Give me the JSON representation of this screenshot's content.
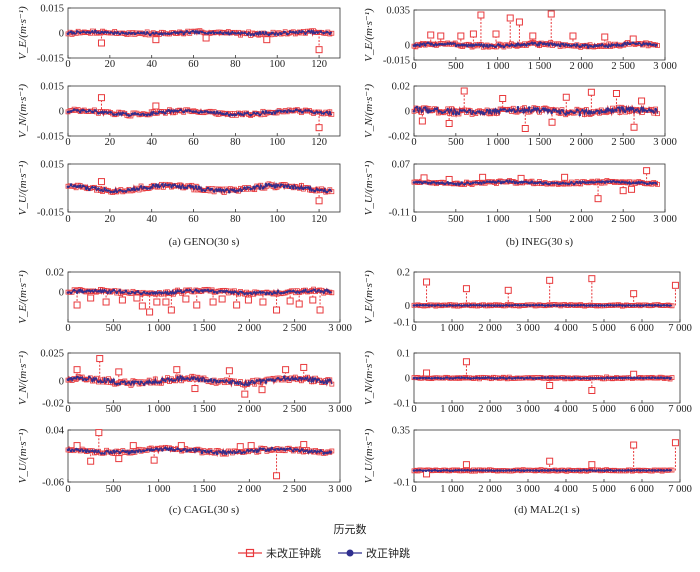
{
  "figure": {
    "xlabel": "历元数",
    "legend": [
      {
        "name": "未改正钟跳",
        "color": "#e8393c",
        "marker": "square"
      },
      {
        "name": "改正钟跳",
        "color": "#2f2f8f",
        "marker": "circle"
      }
    ],
    "colors": {
      "uncorrected": "#e8393c",
      "corrected": "#2f2f8f"
    }
  },
  "chart_data": [
    {
      "type": "line",
      "title": "(a) GENO(30 s)",
      "xlim": [
        0,
        130
      ],
      "xticks": [
        "0",
        "20",
        "40",
        "60",
        "80",
        "100",
        "120"
      ],
      "rows": [
        {
          "ylabel": "V_E/(m·s⁻¹)",
          "ylim": [
            -0.015,
            0.015
          ],
          "yticks": [
            "0.015",
            "0",
            "-0.015"
          ],
          "baseline": 0,
          "noise": 0.0008,
          "wave": 0.0004,
          "spikes": [
            {
              "x": 16,
              "y": -0.006
            },
            {
              "x": 42,
              "y": -0.004
            },
            {
              "x": 66,
              "y": -0.003
            },
            {
              "x": 95,
              "y": -0.004
            },
            {
              "x": 120,
              "y": -0.01
            }
          ]
        },
        {
          "ylabel": "V_N/(m·s⁻¹)",
          "ylim": [
            -0.015,
            0.015
          ],
          "yticks": [
            "0.015",
            "0",
            "-0.015"
          ],
          "baseline": -0.001,
          "noise": 0.0009,
          "wave": 0.001,
          "spikes": [
            {
              "x": 16,
              "y": 0.008
            },
            {
              "x": 42,
              "y": 0.003
            },
            {
              "x": 120,
              "y": -0.01
            }
          ]
        },
        {
          "ylabel": "V_U/(m·s⁻¹)",
          "ylim": [
            -0.015,
            0.015
          ],
          "yticks": [
            "0.015",
            "-0.015"
          ],
          "baseline": 0,
          "noise": 0.0012,
          "wave": 0.0015,
          "spikes": [
            {
              "x": 16,
              "y": 0.004
            },
            {
              "x": 120,
              "y": -0.008
            }
          ]
        }
      ]
    },
    {
      "type": "line",
      "title": "(b) INEG(30 s)",
      "xlim": [
        0,
        3000
      ],
      "xticks": [
        "0",
        "500",
        "1 000",
        "1 500",
        "2 000",
        "2 500",
        "3 000"
      ],
      "rows": [
        {
          "ylabel": "V_E/(m·s⁻¹)",
          "ylim": [
            -0.015,
            0.035
          ],
          "yticks": [
            "0.035",
            "0",
            "-0.015"
          ],
          "baseline": 0,
          "noise": 0.0015,
          "wave": 0.001,
          "spikes": [
            {
              "x": 200,
              "y": 0.01
            },
            {
              "x": 320,
              "y": 0.009
            },
            {
              "x": 560,
              "y": 0.009
            },
            {
              "x": 710,
              "y": 0.011
            },
            {
              "x": 800,
              "y": 0.03
            },
            {
              "x": 980,
              "y": 0.011
            },
            {
              "x": 1150,
              "y": 0.027
            },
            {
              "x": 1260,
              "y": 0.023
            },
            {
              "x": 1420,
              "y": 0.009
            },
            {
              "x": 1640,
              "y": 0.031
            },
            {
              "x": 1900,
              "y": 0.009
            },
            {
              "x": 2280,
              "y": 0.008
            },
            {
              "x": 2620,
              "y": 0.006
            }
          ]
        },
        {
          "ylabel": "V_N/(m·s⁻¹)",
          "ylim": [
            -0.02,
            0.02
          ],
          "yticks": [
            "0.02",
            "0",
            "-0.02"
          ],
          "baseline": 0,
          "noise": 0.0022,
          "wave": 0.001,
          "spikes": [
            {
              "x": 100,
              "y": -0.008
            },
            {
              "x": 420,
              "y": -0.01
            },
            {
              "x": 600,
              "y": 0.016
            },
            {
              "x": 1060,
              "y": 0.01
            },
            {
              "x": 1330,
              "y": -0.014
            },
            {
              "x": 1650,
              "y": -0.009
            },
            {
              "x": 1820,
              "y": 0.011
            },
            {
              "x": 2120,
              "y": 0.015
            },
            {
              "x": 2420,
              "y": 0.014
            },
            {
              "x": 2630,
              "y": -0.013
            },
            {
              "x": 2720,
              "y": 0.008
            }
          ]
        },
        {
          "ylabel": "V_U/(m·s⁻¹)",
          "ylim": [
            -0.11,
            0.07
          ],
          "yticks": [
            "0.07",
            "-0.11"
          ],
          "baseline": 0,
          "noise": 0.004,
          "wave": 0.003,
          "spikes": [
            {
              "x": 120,
              "y": 0.018
            },
            {
              "x": 420,
              "y": 0.012
            },
            {
              "x": 820,
              "y": 0.02
            },
            {
              "x": 1280,
              "y": 0.016
            },
            {
              "x": 1800,
              "y": 0.02
            },
            {
              "x": 2200,
              "y": -0.06
            },
            {
              "x": 2500,
              "y": -0.03
            },
            {
              "x": 2600,
              "y": -0.025
            },
            {
              "x": 2780,
              "y": 0.045
            }
          ]
        }
      ]
    },
    {
      "type": "line",
      "title": "(c) CAGL(30 s)",
      "xlim": [
        0,
        3000
      ],
      "xticks": [
        "0",
        "500",
        "1 000",
        "1 500",
        "2 000",
        "2 500",
        "3 000"
      ],
      "rows": [
        {
          "ylabel": "V_E/(m·s⁻¹)",
          "ylim": [
            -0.03,
            0.02
          ],
          "yticks": [
            "0.02",
            "0"
          ],
          "baseline": 0,
          "noise": 0.0015,
          "wave": 0.001,
          "spikes": [
            {
              "x": 100,
              "y": -0.013
            },
            {
              "x": 250,
              "y": -0.006
            },
            {
              "x": 420,
              "y": -0.01
            },
            {
              "x": 600,
              "y": -0.008
            },
            {
              "x": 760,
              "y": -0.006
            },
            {
              "x": 820,
              "y": -0.014
            },
            {
              "x": 900,
              "y": -0.02
            },
            {
              "x": 980,
              "y": -0.01
            },
            {
              "x": 1080,
              "y": -0.01
            },
            {
              "x": 1140,
              "y": -0.018
            },
            {
              "x": 1300,
              "y": -0.007
            },
            {
              "x": 1420,
              "y": -0.013
            },
            {
              "x": 1600,
              "y": -0.01
            },
            {
              "x": 1700,
              "y": -0.007
            },
            {
              "x": 1860,
              "y": -0.013
            },
            {
              "x": 1990,
              "y": -0.008
            },
            {
              "x": 2150,
              "y": -0.01
            },
            {
              "x": 2300,
              "y": -0.018
            },
            {
              "x": 2450,
              "y": -0.009
            },
            {
              "x": 2550,
              "y": -0.012
            },
            {
              "x": 2700,
              "y": -0.008
            },
            {
              "x": 2780,
              "y": -0.018
            }
          ]
        },
        {
          "ylabel": "V_N/(m·s⁻¹)",
          "ylim": [
            -0.02,
            0.025
          ],
          "yticks": [
            "0.025",
            "0",
            "-0.02"
          ],
          "baseline": 0,
          "noise": 0.002,
          "wave": 0.002,
          "spikes": [
            {
              "x": 100,
              "y": 0.01
            },
            {
              "x": 350,
              "y": 0.02
            },
            {
              "x": 560,
              "y": 0.008
            },
            {
              "x": 1200,
              "y": 0.01
            },
            {
              "x": 1400,
              "y": -0.007
            },
            {
              "x": 1780,
              "y": 0.009
            },
            {
              "x": 1950,
              "y": -0.012
            },
            {
              "x": 2140,
              "y": -0.008
            },
            {
              "x": 2400,
              "y": 0.01
            },
            {
              "x": 2600,
              "y": 0.012
            }
          ]
        },
        {
          "ylabel": "V_U/(m·s⁻¹)",
          "ylim": [
            -0.06,
            0.04
          ],
          "yticks": [
            "0.04",
            "-0.06"
          ],
          "baseline": 0,
          "noise": 0.003,
          "wave": 0.003,
          "spikes": [
            {
              "x": 100,
              "y": 0.01
            },
            {
              "x": 250,
              "y": -0.02
            },
            {
              "x": 340,
              "y": 0.035
            },
            {
              "x": 560,
              "y": -0.015
            },
            {
              "x": 720,
              "y": 0.01
            },
            {
              "x": 950,
              "y": -0.018
            },
            {
              "x": 1250,
              "y": 0.01
            },
            {
              "x": 1900,
              "y": 0.008
            },
            {
              "x": 2020,
              "y": 0.01
            },
            {
              "x": 2300,
              "y": -0.048
            },
            {
              "x": 2600,
              "y": 0.012
            }
          ]
        }
      ]
    },
    {
      "type": "line",
      "title": "(d) MAL2(1 s)",
      "xlim": [
        0,
        7000
      ],
      "xticks": [
        "0",
        "1 000",
        "2 000",
        "3 000",
        "4 000",
        "5 000",
        "6 000",
        "7 000"
      ],
      "rows": [
        {
          "ylabel": "V_E/(m·s⁻¹)",
          "ylim": [
            -0.1,
            0.2
          ],
          "yticks": [
            "0.2",
            "0",
            "-0.1"
          ],
          "baseline": 0,
          "noise": 0.002,
          "wave": 0,
          "spikes": [
            {
              "x": 330,
              "y": 0.14
            },
            {
              "x": 1380,
              "y": 0.1
            },
            {
              "x": 2480,
              "y": 0.09
            },
            {
              "x": 3570,
              "y": 0.15
            },
            {
              "x": 4680,
              "y": 0.16
            },
            {
              "x": 5780,
              "y": 0.07
            },
            {
              "x": 6880,
              "y": 0.12
            }
          ]
        },
        {
          "ylabel": "V_N/(m·s⁻¹)",
          "ylim": [
            -0.1,
            0.1
          ],
          "yticks": [
            "0.1",
            "0",
            "-0.1"
          ],
          "baseline": 0,
          "noise": 0.002,
          "wave": 0,
          "spikes": [
            {
              "x": 330,
              "y": 0.02
            },
            {
              "x": 1380,
              "y": 0.065
            },
            {
              "x": 3570,
              "y": -0.03
            },
            {
              "x": 4680,
              "y": -0.05
            },
            {
              "x": 5780,
              "y": 0.015
            }
          ]
        },
        {
          "ylabel": "V_U/(m·s⁻¹)",
          "ylim": [
            -0.1,
            0.35
          ],
          "yticks": [
            "0.35",
            "-0.1"
          ],
          "baseline": 0,
          "noise": 0.003,
          "wave": 0,
          "spikes": [
            {
              "x": 330,
              "y": -0.03
            },
            {
              "x": 1380,
              "y": 0.05
            },
            {
              "x": 3570,
              "y": 0.08
            },
            {
              "x": 4680,
              "y": 0.05
            },
            {
              "x": 5780,
              "y": 0.22
            },
            {
              "x": 6880,
              "y": 0.24
            }
          ]
        }
      ]
    }
  ]
}
